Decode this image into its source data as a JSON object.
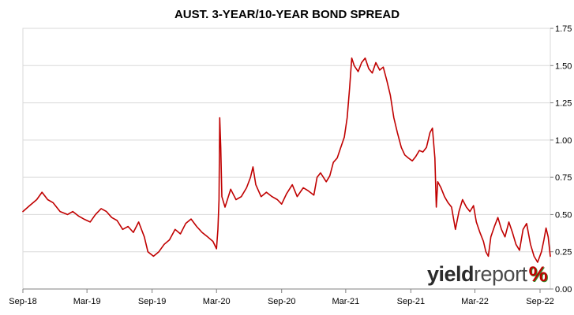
{
  "colors": {
    "line": "#c00000",
    "grid": "#d9d9d9",
    "axis": "#808080",
    "logo_red": "#c00000",
    "logo_green": "#3a8a2e"
  },
  "logo": {
    "yield": "yield",
    "report": "report",
    "pct": "%"
  },
  "chart_data": {
    "type": "line",
    "title": "AUST. 3-YEAR/10-YEAR BOND SPREAD",
    "xlabel": "",
    "ylabel": "",
    "grid": true,
    "legend": "none",
    "y_axis_position": "right",
    "ylim": [
      0,
      1.75
    ],
    "yticks": [
      0.0,
      0.25,
      0.5,
      0.75,
      1.0,
      1.25,
      1.5,
      1.75
    ],
    "ytick_labels": [
      "0.00",
      "0.25",
      "0.50",
      "0.75",
      "1.00",
      "1.25",
      "1.50",
      "1.75"
    ],
    "xlim": [
      "2018-09-01",
      "2022-09-30"
    ],
    "xticks": [
      "2018-09-01",
      "2019-03-01",
      "2019-09-01",
      "2020-03-01",
      "2020-09-01",
      "2021-03-01",
      "2021-09-01",
      "2022-03-01",
      "2022-09-01"
    ],
    "xtick_labels": [
      "Sep-18",
      "Mar-19",
      "Sep-19",
      "Mar-20",
      "Sep-20",
      "Mar-21",
      "Sep-21",
      "Mar-22",
      "Sep-22"
    ],
    "series": [
      {
        "values": [
          [
            "2018-09-01",
            0.52
          ],
          [
            "2018-09-20",
            0.56
          ],
          [
            "2018-10-10",
            0.6
          ],
          [
            "2018-10-25",
            0.65
          ],
          [
            "2018-11-10",
            0.6
          ],
          [
            "2018-11-25",
            0.58
          ],
          [
            "2018-12-15",
            0.52
          ],
          [
            "2019-01-05",
            0.5
          ],
          [
            "2019-01-20",
            0.52
          ],
          [
            "2019-02-05",
            0.49
          ],
          [
            "2019-02-20",
            0.47
          ],
          [
            "2019-03-10",
            0.45
          ],
          [
            "2019-03-25",
            0.5
          ],
          [
            "2019-04-10",
            0.54
          ],
          [
            "2019-04-25",
            0.52
          ],
          [
            "2019-05-10",
            0.48
          ],
          [
            "2019-05-25",
            0.46
          ],
          [
            "2019-06-10",
            0.4
          ],
          [
            "2019-06-25",
            0.42
          ],
          [
            "2019-07-10",
            0.38
          ],
          [
            "2019-07-25",
            0.45
          ],
          [
            "2019-08-10",
            0.35
          ],
          [
            "2019-08-20",
            0.25
          ],
          [
            "2019-09-05",
            0.22
          ],
          [
            "2019-09-20",
            0.25
          ],
          [
            "2019-10-05",
            0.3
          ],
          [
            "2019-10-20",
            0.33
          ],
          [
            "2019-11-05",
            0.4
          ],
          [
            "2019-11-20",
            0.37
          ],
          [
            "2019-12-05",
            0.44
          ],
          [
            "2019-12-20",
            0.47
          ],
          [
            "2020-01-05",
            0.42
          ],
          [
            "2020-01-20",
            0.38
          ],
          [
            "2020-02-05",
            0.35
          ],
          [
            "2020-02-20",
            0.32
          ],
          [
            "2020-03-01",
            0.27
          ],
          [
            "2020-03-05",
            0.4
          ],
          [
            "2020-03-08",
            0.6
          ],
          [
            "2020-03-10",
            1.15
          ],
          [
            "2020-03-13",
            0.95
          ],
          [
            "2020-03-16",
            0.62
          ],
          [
            "2020-03-25",
            0.55
          ],
          [
            "2020-04-10",
            0.67
          ],
          [
            "2020-04-25",
            0.6
          ],
          [
            "2020-05-10",
            0.62
          ],
          [
            "2020-05-25",
            0.68
          ],
          [
            "2020-06-05",
            0.75
          ],
          [
            "2020-06-12",
            0.82
          ],
          [
            "2020-06-20",
            0.7
          ],
          [
            "2020-07-05",
            0.62
          ],
          [
            "2020-07-20",
            0.65
          ],
          [
            "2020-08-05",
            0.62
          ],
          [
            "2020-08-20",
            0.6
          ],
          [
            "2020-09-01",
            0.57
          ],
          [
            "2020-09-15",
            0.64
          ],
          [
            "2020-10-01",
            0.7
          ],
          [
            "2020-10-15",
            0.62
          ],
          [
            "2020-11-01",
            0.68
          ],
          [
            "2020-11-15",
            0.66
          ],
          [
            "2020-12-01",
            0.63
          ],
          [
            "2020-12-10",
            0.75
          ],
          [
            "2020-12-20",
            0.78
          ],
          [
            "2021-01-05",
            0.72
          ],
          [
            "2021-01-15",
            0.76
          ],
          [
            "2021-01-25",
            0.85
          ],
          [
            "2021-02-05",
            0.88
          ],
          [
            "2021-02-15",
            0.95
          ],
          [
            "2021-02-25",
            1.02
          ],
          [
            "2021-03-05",
            1.15
          ],
          [
            "2021-03-12",
            1.35
          ],
          [
            "2021-03-18",
            1.55
          ],
          [
            "2021-03-25",
            1.5
          ],
          [
            "2021-04-05",
            1.46
          ],
          [
            "2021-04-15",
            1.52
          ],
          [
            "2021-04-25",
            1.55
          ],
          [
            "2021-05-05",
            1.48
          ],
          [
            "2021-05-15",
            1.45
          ],
          [
            "2021-05-25",
            1.52
          ],
          [
            "2021-06-05",
            1.47
          ],
          [
            "2021-06-15",
            1.49
          ],
          [
            "2021-06-25",
            1.4
          ],
          [
            "2021-07-05",
            1.3
          ],
          [
            "2021-07-15",
            1.15
          ],
          [
            "2021-07-25",
            1.05
          ],
          [
            "2021-08-05",
            0.95
          ],
          [
            "2021-08-15",
            0.9
          ],
          [
            "2021-08-25",
            0.88
          ],
          [
            "2021-09-05",
            0.86
          ],
          [
            "2021-09-15",
            0.89
          ],
          [
            "2021-09-25",
            0.93
          ],
          [
            "2021-10-05",
            0.92
          ],
          [
            "2021-10-15",
            0.95
          ],
          [
            "2021-10-25",
            1.05
          ],
          [
            "2021-11-01",
            1.08
          ],
          [
            "2021-11-08",
            0.88
          ],
          [
            "2021-11-12",
            0.55
          ],
          [
            "2021-11-16",
            0.72
          ],
          [
            "2021-11-25",
            0.68
          ],
          [
            "2021-12-05",
            0.62
          ],
          [
            "2021-12-15",
            0.58
          ],
          [
            "2021-12-25",
            0.55
          ],
          [
            "2022-01-05",
            0.4
          ],
          [
            "2022-01-15",
            0.52
          ],
          [
            "2022-01-25",
            0.6
          ],
          [
            "2022-02-05",
            0.55
          ],
          [
            "2022-02-15",
            0.52
          ],
          [
            "2022-02-25",
            0.56
          ],
          [
            "2022-03-05",
            0.45
          ],
          [
            "2022-03-15",
            0.38
          ],
          [
            "2022-03-25",
            0.32
          ],
          [
            "2022-04-01",
            0.25
          ],
          [
            "2022-04-08",
            0.22
          ],
          [
            "2022-04-15",
            0.35
          ],
          [
            "2022-04-25",
            0.42
          ],
          [
            "2022-05-05",
            0.48
          ],
          [
            "2022-05-15",
            0.4
          ],
          [
            "2022-05-25",
            0.35
          ],
          [
            "2022-06-05",
            0.45
          ],
          [
            "2022-06-15",
            0.38
          ],
          [
            "2022-06-25",
            0.3
          ],
          [
            "2022-07-05",
            0.26
          ],
          [
            "2022-07-15",
            0.4
          ],
          [
            "2022-07-25",
            0.44
          ],
          [
            "2022-08-05",
            0.3
          ],
          [
            "2022-08-15",
            0.22
          ],
          [
            "2022-08-25",
            0.18
          ],
          [
            "2022-09-05",
            0.25
          ],
          [
            "2022-09-12",
            0.33
          ],
          [
            "2022-09-18",
            0.41
          ],
          [
            "2022-09-24",
            0.35
          ],
          [
            "2022-09-30",
            0.22
          ]
        ]
      }
    ]
  }
}
